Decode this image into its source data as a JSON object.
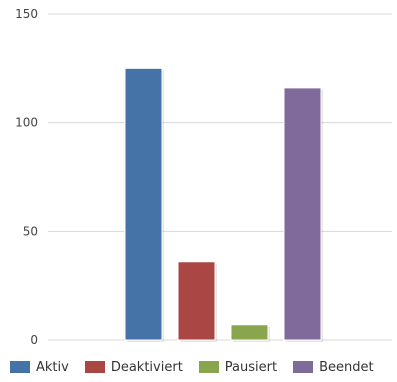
{
  "chart_data": {
    "type": "bar",
    "title": "",
    "xlabel": "",
    "ylabel": "",
    "ylim": [
      0,
      150
    ],
    "yticks": [
      0,
      50,
      100,
      150
    ],
    "grid": true,
    "legend_position": "bottom",
    "series": [
      {
        "name": "Aktiv",
        "value": 125,
        "color": "#4572a7"
      },
      {
        "name": "Deaktiviert",
        "value": 36,
        "color": "#aa4643"
      },
      {
        "name": "Pausiert",
        "value": 7,
        "color": "#89a54e"
      },
      {
        "name": "Beendet",
        "value": 116,
        "color": "#80699b"
      }
    ]
  }
}
